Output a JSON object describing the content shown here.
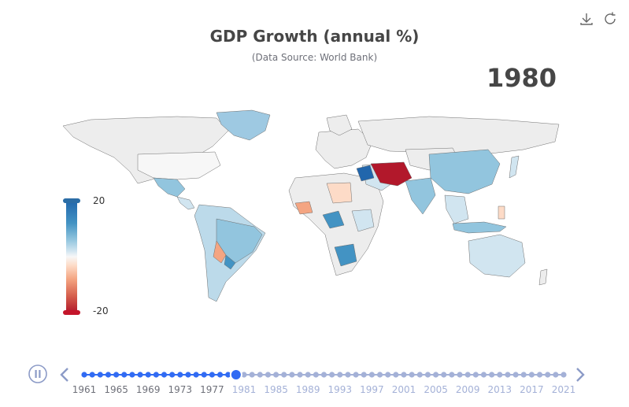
{
  "title": "GDP Growth (annual %)",
  "subtitle": "(Data Source: World Bank)",
  "current_year": "1980",
  "toolbox": {
    "icons": [
      "download-icon",
      "refresh-icon"
    ]
  },
  "legend": {
    "max_label": "20",
    "min_label": "-20",
    "colors": [
      "#b2182b",
      "#d6604d",
      "#f4a582",
      "#fddbc7",
      "#f7f7f7",
      "#d1e5f0",
      "#92c5de",
      "#4393c3",
      "#2166ac"
    ]
  },
  "timeline": {
    "years_start": 1961,
    "years_end": 2021,
    "current": 1980,
    "labels": [
      "1961",
      "1965",
      "1969",
      "1973",
      "1977",
      "1981",
      "1985",
      "1989",
      "1993",
      "1997",
      "2001",
      "2005",
      "2009",
      "2013",
      "2017",
      "2021"
    ],
    "active_color": "#316bf3",
    "inactive_color": "#a4b1d7"
  },
  "colors": {
    "title": "#464646",
    "land_default": "#eeeeee",
    "border": "#6e6e6e"
  }
}
